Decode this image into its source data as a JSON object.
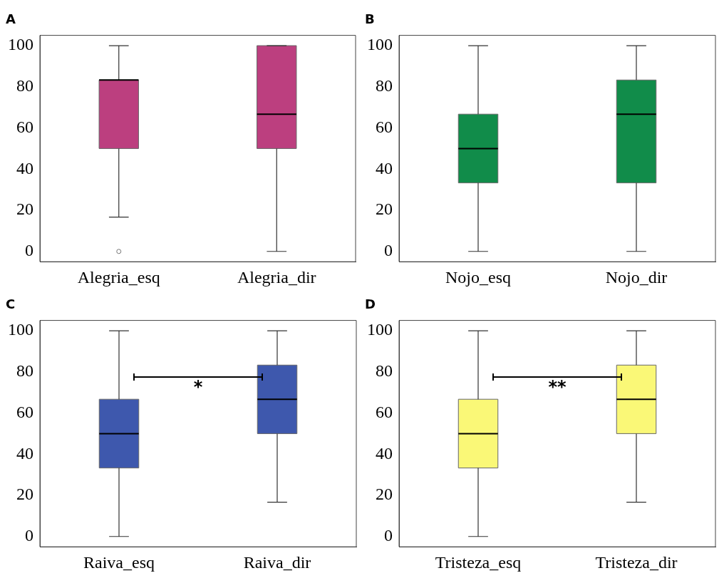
{
  "chart_data": [
    {
      "type": "box",
      "title": "A",
      "categories": [
        "Alegria_esq",
        "Alegria_dir"
      ],
      "ylim": [
        -5,
        105
      ],
      "yticks": [
        0,
        20,
        40,
        60,
        80,
        100
      ],
      "grid": false,
      "series": [
        {
          "color": "#bc3f7f",
          "boxes": [
            {
              "low": 16.7,
              "q1": 50,
              "median": 83.3,
              "q3": 83.3,
              "high": 100,
              "outliers": [
                0
              ]
            },
            {
              "low": 0,
              "q1": 50,
              "median": 66.7,
              "q3": 100,
              "high": 100
            }
          ]
        }
      ]
    },
    {
      "type": "box",
      "title": "B",
      "categories": [
        "Nojo_esq",
        "Nojo_dir"
      ],
      "ylim": [
        -5,
        105
      ],
      "yticks": [
        0,
        20,
        40,
        60,
        80,
        100
      ],
      "grid": false,
      "series": [
        {
          "color": "#118c4a",
          "boxes": [
            {
              "low": 0,
              "q1": 33.3,
              "median": 50,
              "q3": 66.7,
              "high": 100
            },
            {
              "low": 0,
              "q1": 33.3,
              "median": 66.7,
              "q3": 83.3,
              "high": 100
            }
          ]
        }
      ]
    },
    {
      "type": "box",
      "title": "C",
      "categories": [
        "Raiva_esq",
        "Raiva_dir"
      ],
      "ylim": [
        -5,
        105
      ],
      "yticks": [
        0,
        20,
        40,
        60,
        80,
        100
      ],
      "grid": false,
      "annotations": [
        "*"
      ],
      "series": [
        {
          "color": "#3e58ad",
          "boxes": [
            {
              "low": 0,
              "q1": 33.3,
              "median": 50,
              "q3": 66.7,
              "high": 100
            },
            {
              "low": 16.7,
              "q1": 50,
              "median": 66.7,
              "q3": 83.3,
              "high": 100
            }
          ]
        }
      ]
    },
    {
      "type": "box",
      "title": "D",
      "categories": [
        "Tristeza_esq",
        "Tristeza_dir"
      ],
      "ylim": [
        -5,
        105
      ],
      "yticks": [
        0,
        20,
        40,
        60,
        80,
        100
      ],
      "grid": false,
      "annotations": [
        "**"
      ],
      "series": [
        {
          "color": "#faf877",
          "boxes": [
            {
              "low": 0,
              "q1": 33.3,
              "median": 50,
              "q3": 66.7,
              "high": 100
            },
            {
              "low": 16.7,
              "q1": 50,
              "median": 66.7,
              "q3": 83.3,
              "high": 100
            }
          ]
        }
      ]
    }
  ]
}
